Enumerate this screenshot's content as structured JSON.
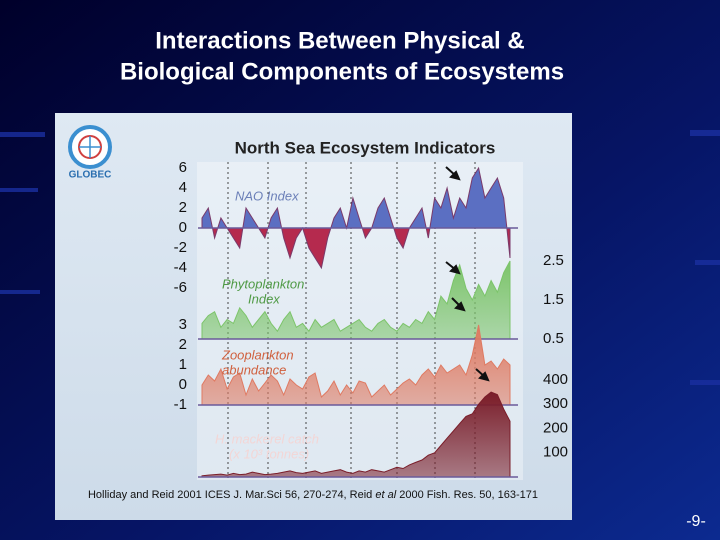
{
  "slide": {
    "title_lines": [
      "Interactions Between Physical &",
      "Biological Components of Ecosystems"
    ],
    "page_number": "-9-"
  },
  "chart_data": {
    "type": "area",
    "title": "North Sea Ecosystem Indicators",
    "logo": "GLOBEC",
    "citation": [
      "Holliday and Reid 2001 ICES J. Mar.Sci 56, 270-274, Reid ",
      "et al",
      " 2000 Fish. Res. 50, 163-171"
    ],
    "panels": [
      {
        "label": [
          "NAO Index"
        ],
        "axis": "left",
        "fill": "diverging",
        "colors": {
          "above": "#5b6fc2",
          "below": "#b52a4e"
        },
        "label_color": "#6b7fb8",
        "ylim": [
          -6,
          6
        ],
        "yticks": [
          6,
          4,
          2,
          0,
          -2,
          -4,
          -6
        ],
        "values": [
          1,
          2,
          -1,
          1,
          0,
          -1,
          -2,
          2,
          1,
          0,
          -1,
          1,
          2,
          -1,
          -3,
          -1,
          0,
          -2,
          -3,
          -4,
          -1,
          1,
          2,
          0,
          3,
          1,
          -1,
          0,
          2,
          3,
          1,
          -1,
          -2,
          0,
          1,
          2,
          -1,
          3,
          2,
          4,
          1,
          3,
          2,
          5,
          6,
          3,
          4,
          5,
          3,
          -3
        ]
      },
      {
        "label": [
          "Phytoplankton",
          "Index"
        ],
        "axis": "right",
        "color": "#7cc46a",
        "label_color": "#4f9a45",
        "ylim": [
          0.5,
          2.5
        ],
        "yticks": [
          2.5,
          1.5,
          0.5
        ],
        "values": [
          0.9,
          1.1,
          1.2,
          0.8,
          1.0,
          0.9,
          1.3,
          1.1,
          0.8,
          1.0,
          1.2,
          0.9,
          0.7,
          1.0,
          1.2,
          0.8,
          0.9,
          0.7,
          1.0,
          0.8,
          0.9,
          1.0,
          0.7,
          0.8,
          0.9,
          1.0,
          0.8,
          0.7,
          0.9,
          1.0,
          0.8,
          0.7,
          0.9,
          0.8,
          1.0,
          0.9,
          1.2,
          1.0,
          1.6,
          1.4,
          2.0,
          2.4,
          1.8,
          1.5,
          1.9,
          1.6,
          2.0,
          1.7,
          2.2,
          2.5
        ]
      },
      {
        "label": [
          "Zooplankton",
          "abundance"
        ],
        "axis": "left",
        "color": "#df7a62",
        "label_color": "#d0603e",
        "ylim": [
          -1,
          3
        ],
        "yticks": [
          3,
          2,
          1,
          0,
          -1
        ],
        "values": [
          0.0,
          0.5,
          0.2,
          0.8,
          -0.2,
          0.4,
          0.6,
          -0.5,
          0.3,
          -0.3,
          0.1,
          0.5,
          0.2,
          -0.5,
          0.3,
          0.0,
          -0.2,
          0.4,
          0.6,
          -0.6,
          -0.3,
          0.2,
          -0.5,
          0.0,
          -0.4,
          0.2,
          0.1,
          -0.6,
          -0.3,
          0.0,
          -0.5,
          -0.2,
          0.1,
          0.3,
          0.0,
          0.5,
          0.8,
          0.4,
          1.0,
          0.6,
          0.8,
          1.0,
          0.5,
          1.5,
          3.0,
          1.0,
          1.2,
          0.8,
          1.3,
          1.0
        ]
      },
      {
        "label": [
          "H. mackerel catch",
          "(x 10³ tonnes)"
        ],
        "axis": "right",
        "color": "#7a1e2a",
        "label_color": "#f3d6d6",
        "ylim": [
          0,
          400
        ],
        "yticks": [
          400,
          300,
          200,
          100
        ],
        "values": [
          5,
          8,
          10,
          12,
          8,
          15,
          10,
          12,
          20,
          15,
          10,
          12,
          15,
          20,
          25,
          18,
          15,
          20,
          25,
          15,
          20,
          25,
          30,
          20,
          15,
          25,
          20,
          30,
          25,
          20,
          30,
          40,
          35,
          50,
          60,
          70,
          90,
          100,
          130,
          160,
          190,
          220,
          250,
          260,
          300,
          330,
          350,
          340,
          280,
          230
        ]
      }
    ]
  }
}
